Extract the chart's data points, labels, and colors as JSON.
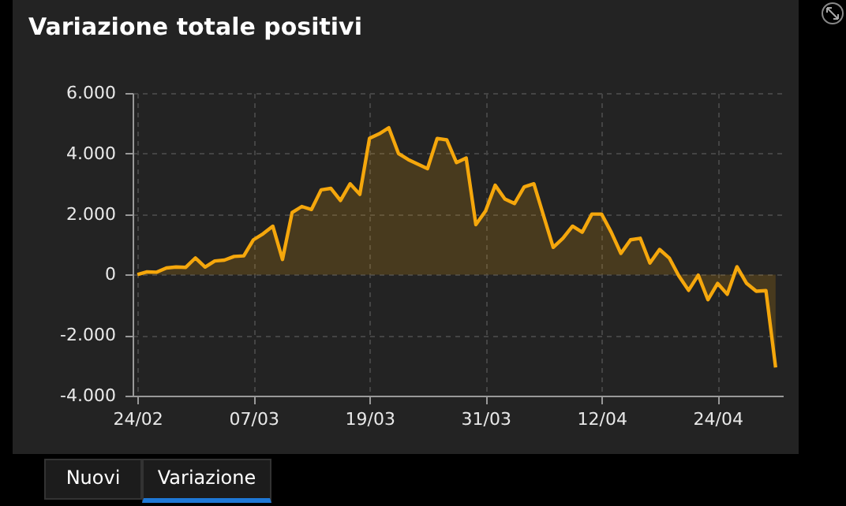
{
  "chart_data": {
    "type": "area",
    "title": "Variazione totale positivi",
    "x": [
      "--02-24",
      "--02-25",
      "--02-26",
      "--02-27",
      "--02-28",
      "--02-29",
      "--03-01",
      "--03-02",
      "--03-03",
      "--03-04",
      "--03-05",
      "--03-06",
      "--03-07",
      "--03-08",
      "--03-09",
      "--03-10",
      "--03-11",
      "--03-12",
      "--03-13",
      "--03-14",
      "--03-15",
      "--03-16",
      "--03-17",
      "--03-18",
      "--03-19",
      "--03-20",
      "--03-21",
      "--03-22",
      "--03-23",
      "--03-24",
      "--03-25",
      "--03-26",
      "--03-27",
      "--03-28",
      "--03-29",
      "--03-30",
      "--03-31",
      "--04-01",
      "--04-02",
      "--04-03",
      "--04-04",
      "--04-05",
      "--04-06",
      "--04-07",
      "--04-08",
      "--04-09",
      "--04-10",
      "--04-11",
      "--04-12",
      "--04-13",
      "--04-14",
      "--04-15",
      "--04-16",
      "--04-17",
      "--04-18",
      "--04-19",
      "--04-20",
      "--04-21",
      "--04-22",
      "--04-23",
      "--04-24",
      "--04-25",
      "--04-26",
      "--04-27",
      "--04-28",
      "--04-29",
      "--04-30"
    ],
    "series": [
      {
        "color": "#f5a70c",
        "values": [
          0,
          90,
          80,
          220,
          250,
          240,
          550,
          250,
          450,
          480,
          600,
          620,
          1150,
          1350,
          1600,
          500,
          2050,
          2250,
          2150,
          2800,
          2850,
          2450,
          3000,
          2650,
          4500,
          4650,
          4850,
          4000,
          3800,
          3650,
          3500,
          4500,
          4450,
          3700,
          3850,
          1650,
          2100,
          2950,
          2500,
          2350,
          2900,
          3000,
          1950,
          900,
          1200,
          1600,
          1400,
          2000,
          2000,
          1400,
          700,
          1150,
          1200,
          380,
          830,
          550,
          -50,
          -520,
          -20,
          -830,
          -290,
          -650,
          260,
          -290,
          -550,
          -530,
          -3070
        ]
      }
    ],
    "xlim": [
      "--02-23T12:00",
      "--04-30T18:00"
    ],
    "xticks": [
      {
        "value": "--02-24",
        "label": "24/02"
      },
      {
        "value": "--03-07",
        "label": "07/03"
      },
      {
        "value": "--03-19",
        "label": "19/03"
      },
      {
        "value": "--03-31",
        "label": "31/03"
      },
      {
        "value": "--04-12",
        "label": "12/04"
      },
      {
        "value": "--04-24",
        "label": "24/04"
      }
    ],
    "ylim": [
      -4000,
      6000
    ],
    "yticks": [
      {
        "value": -4000,
        "label": "-4.000"
      },
      {
        "value": -2000,
        "label": "-2.000"
      },
      0,
      {
        "value": 2000,
        "label": "2.000"
      },
      {
        "value": 4000,
        "label": "4.000"
      },
      {
        "value": 6000,
        "label": "6.000"
      }
    ],
    "grid": true,
    "annotations": [
      "Nuovi",
      "Variazione"
    ]
  }
}
